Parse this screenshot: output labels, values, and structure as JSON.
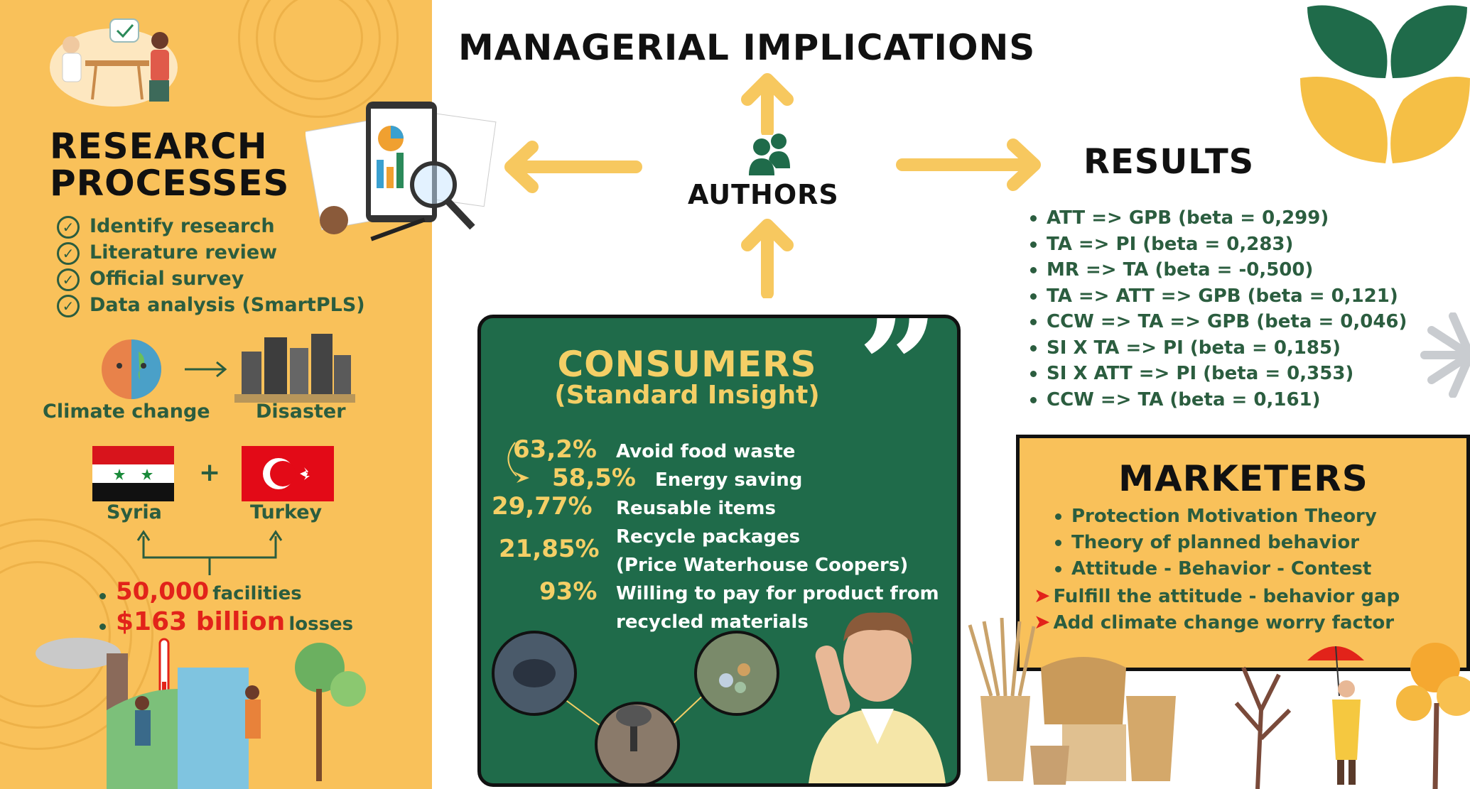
{
  "title": "MANAGERIAL IMPLICATIONS",
  "authors_label": "AUTHORS",
  "research": {
    "heading_line1": "RESEARCH",
    "heading_line2": "PROCESSES",
    "steps": [
      "Identify research",
      "Literature review",
      "Official survey",
      "Data analysis (SmartPLS)"
    ],
    "climate_label": "Climate change",
    "disaster_label": "Disaster",
    "country1": "Syria",
    "country2": "Turkey",
    "plus": "+",
    "facilities_value": "50,000",
    "facilities_label": "facilities",
    "losses_value": "$163 billion",
    "losses_label": "losses"
  },
  "results": {
    "heading": "RESULTS",
    "items": [
      "ATT => GPB (beta = 0,299)",
      "TA => PI (beta = 0,283)",
      "MR => TA (beta = -0,500)",
      "TA => ATT => GPB (beta = 0,121)",
      "CCW => TA => GPB (beta = 0,046)",
      "SI X TA => PI (beta = 0,185)",
      "SI X ATT => PI (beta = 0,353)",
      "CCW => TA (beta = 0,161)"
    ]
  },
  "consumers": {
    "heading": "CONSUMERS",
    "subheading": "(Standard Insight)",
    "quote_mark": "”",
    "stats": [
      {
        "pct": "63,2%",
        "label": "Avoid food waste"
      },
      {
        "pct": "58,5%",
        "label": "Energy saving"
      },
      {
        "pct": "29,77%",
        "label": "Reusable items"
      },
      {
        "pct": "21,85%",
        "label": "Recycle packages",
        "label2": "(Price Waterhouse Coopers)"
      },
      {
        "pct": "93%",
        "label": "Willing to pay for product from",
        "label2": "recycled materials"
      }
    ]
  },
  "marketers": {
    "heading": "MARKETERS",
    "items": [
      "Protection Motivation Theory",
      "Theory of planned behavior",
      "Attitude - Behavior - Contest"
    ],
    "arrow_items": [
      "Fulfill the attitude - behavior gap",
      "Add climate change worry factor"
    ]
  },
  "colors": {
    "orange": "#f9c15a",
    "dark_green": "#1f6b4a",
    "text_green": "#2b5d3f",
    "red": "#e2231a",
    "arrow_yellow": "#f7c85f"
  }
}
